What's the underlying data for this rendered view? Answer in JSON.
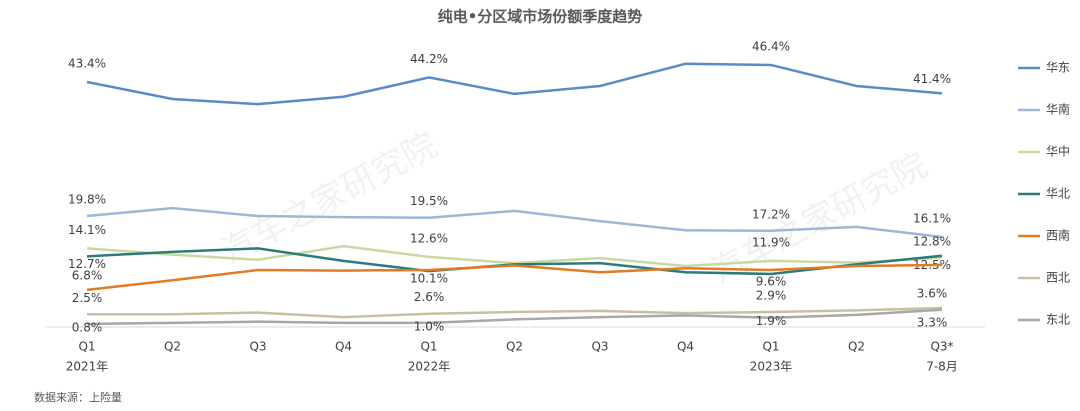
{
  "chart_data": {
    "type": "line",
    "title": "纯电•分区域市场份额季度趋势",
    "categories": [
      "Q1",
      "Q2",
      "Q3",
      "Q4",
      "Q1",
      "Q2",
      "Q3",
      "Q4",
      "Q1",
      "Q2",
      "Q3*"
    ],
    "category_sublabels": [
      "2021年",
      null,
      null,
      null,
      "2022年",
      null,
      null,
      null,
      "2023年",
      null,
      "7-8月"
    ],
    "ylim": [
      0,
      50
    ],
    "series": [
      {
        "name": "华东",
        "color": "#5b8bc5",
        "values": [
          43.4,
          40.4,
          39.5,
          40.8,
          44.2,
          41.3,
          42.7,
          46.6,
          46.4,
          42.7,
          41.4
        ],
        "value_labels": [
          "43.4%",
          null,
          null,
          null,
          "44.2%",
          null,
          null,
          null,
          "46.4%",
          null,
          "41.4%"
        ]
      },
      {
        "name": "华南",
        "color": "#9db7d5",
        "values": [
          19.8,
          21.2,
          19.8,
          19.6,
          19.5,
          20.7,
          18.9,
          17.3,
          17.2,
          17.9,
          16.1
        ],
        "value_labels": [
          "19.8%",
          null,
          null,
          null,
          "19.5%",
          null,
          null,
          null,
          "17.2%",
          null,
          "16.1%"
        ]
      },
      {
        "name": "华中",
        "color": "#c7d9a0",
        "values": [
          14.1,
          13.0,
          12.1,
          14.5,
          12.6,
          11.5,
          12.4,
          11.0,
          11.9,
          11.6,
          12.5
        ],
        "value_labels": [
          "14.1%",
          null,
          null,
          null,
          "12.6%",
          null,
          null,
          null,
          "11.9%",
          null,
          "12.5%"
        ]
      },
      {
        "name": "华北",
        "color": "#2e7a7a",
        "values": [
          12.7,
          13.5,
          14.1,
          11.9,
          10.1,
          11.3,
          11.5,
          9.9,
          9.6,
          11.3,
          12.8
        ],
        "value_labels": [
          "12.7%",
          null,
          null,
          null,
          "10.1%",
          null,
          null,
          null,
          "9.6%",
          null,
          "12.8%"
        ]
      },
      {
        "name": "西南",
        "color": "#e07b26",
        "values": [
          6.8,
          8.5,
          10.3,
          10.2,
          10.3,
          11.1,
          9.9,
          10.6,
          10.3,
          11.0,
          11.2
        ],
        "value_labels": [
          "6.8%",
          null,
          null,
          null,
          null,
          null,
          null,
          null,
          null,
          null,
          null
        ]
      },
      {
        "name": "西北",
        "color": "#c9bfa0",
        "values": [
          2.5,
          2.5,
          2.8,
          2.0,
          2.6,
          2.9,
          3.1,
          2.7,
          2.9,
          3.2,
          3.6
        ],
        "value_labels": [
          "2.5%",
          null,
          null,
          null,
          "2.6%",
          null,
          null,
          null,
          "2.9%",
          null,
          "3.6%"
        ]
      },
      {
        "name": "东北",
        "color": "#a8a8a8",
        "values": [
          0.8,
          1.0,
          1.2,
          1.0,
          1.0,
          1.6,
          2.0,
          2.3,
          1.9,
          2.4,
          3.3
        ],
        "value_labels": [
          "0.8%",
          null,
          null,
          null,
          "1.0%",
          null,
          null,
          null,
          "1.9%",
          null,
          "3.3%"
        ]
      }
    ],
    "watermark": "汽车之家研究院",
    "source": "数据来源：上险量"
  }
}
